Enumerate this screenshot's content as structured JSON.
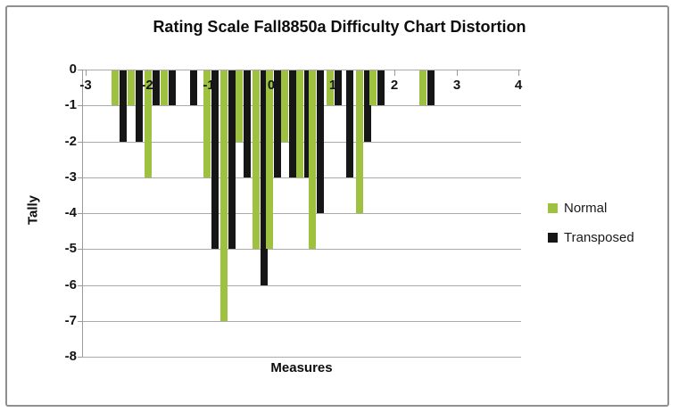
{
  "window": {
    "background": "#ffffff",
    "border_color": "#8f8f8f"
  },
  "chart_data": {
    "type": "bar",
    "title": "Rating Scale Fall8850a Difficulty Chart Distortion",
    "xlabel": "Measures",
    "ylabel": "Tally",
    "xlim": [
      -3.05,
      4.05
    ],
    "ylim": [
      -8,
      0
    ],
    "x_ticks": [
      -3,
      -2,
      -1,
      0,
      1,
      2,
      3,
      4
    ],
    "y_ticks": [
      0,
      -1,
      -2,
      -3,
      -4,
      -5,
      -6,
      -7,
      -8
    ],
    "grid": "horizontal",
    "bar_direction": "down-from-zero",
    "legend_position": "right",
    "legend": [
      {
        "label": "Normal",
        "color": "#9ec13f"
      },
      {
        "label": "Transposed",
        "color": "#161616"
      }
    ],
    "series": [
      {
        "name": "Normal",
        "color": "#9ec13f"
      },
      {
        "name": "Transposed",
        "color": "#161616"
      }
    ],
    "pairs": [
      {
        "x": -2.45,
        "normal": -1,
        "transposed": -2
      },
      {
        "x": -2.19,
        "normal": -1,
        "transposed": -2
      },
      {
        "x": -1.92,
        "normal": -3,
        "transposed": -1
      },
      {
        "x": -1.66,
        "normal": -1,
        "transposed": -1
      },
      {
        "x": -1.31,
        "normal": 0,
        "transposed": -1
      },
      {
        "x": -0.97,
        "normal": -3,
        "transposed": -5
      },
      {
        "x": -0.7,
        "normal": -7,
        "transposed": -5
      },
      {
        "x": -0.45,
        "normal": -2,
        "transposed": -3
      },
      {
        "x": -0.18,
        "normal": -5,
        "transposed": -6
      },
      {
        "x": 0.04,
        "normal": -5,
        "transposed": -3
      },
      {
        "x": 0.29,
        "normal": -2,
        "transposed": -3
      },
      {
        "x": 0.53,
        "normal": -3,
        "transposed": -3
      },
      {
        "x": 0.74,
        "normal": -5,
        "transposed": -4
      },
      {
        "x": 1.02,
        "normal": -1,
        "transposed": -1
      },
      {
        "x": 1.21,
        "normal": 0,
        "transposed": -3
      },
      {
        "x": 1.5,
        "normal": -4,
        "transposed": -2
      },
      {
        "x": 1.72,
        "normal": -1,
        "transposed": -1
      },
      {
        "x": 2.52,
        "normal": -1,
        "transposed": -1
      }
    ],
    "colors": {
      "normal_bar": "#9ec13f",
      "transposed_bar": "#161616",
      "gridline": "#aaaaaa",
      "axis": "#9a9a9a"
    }
  }
}
